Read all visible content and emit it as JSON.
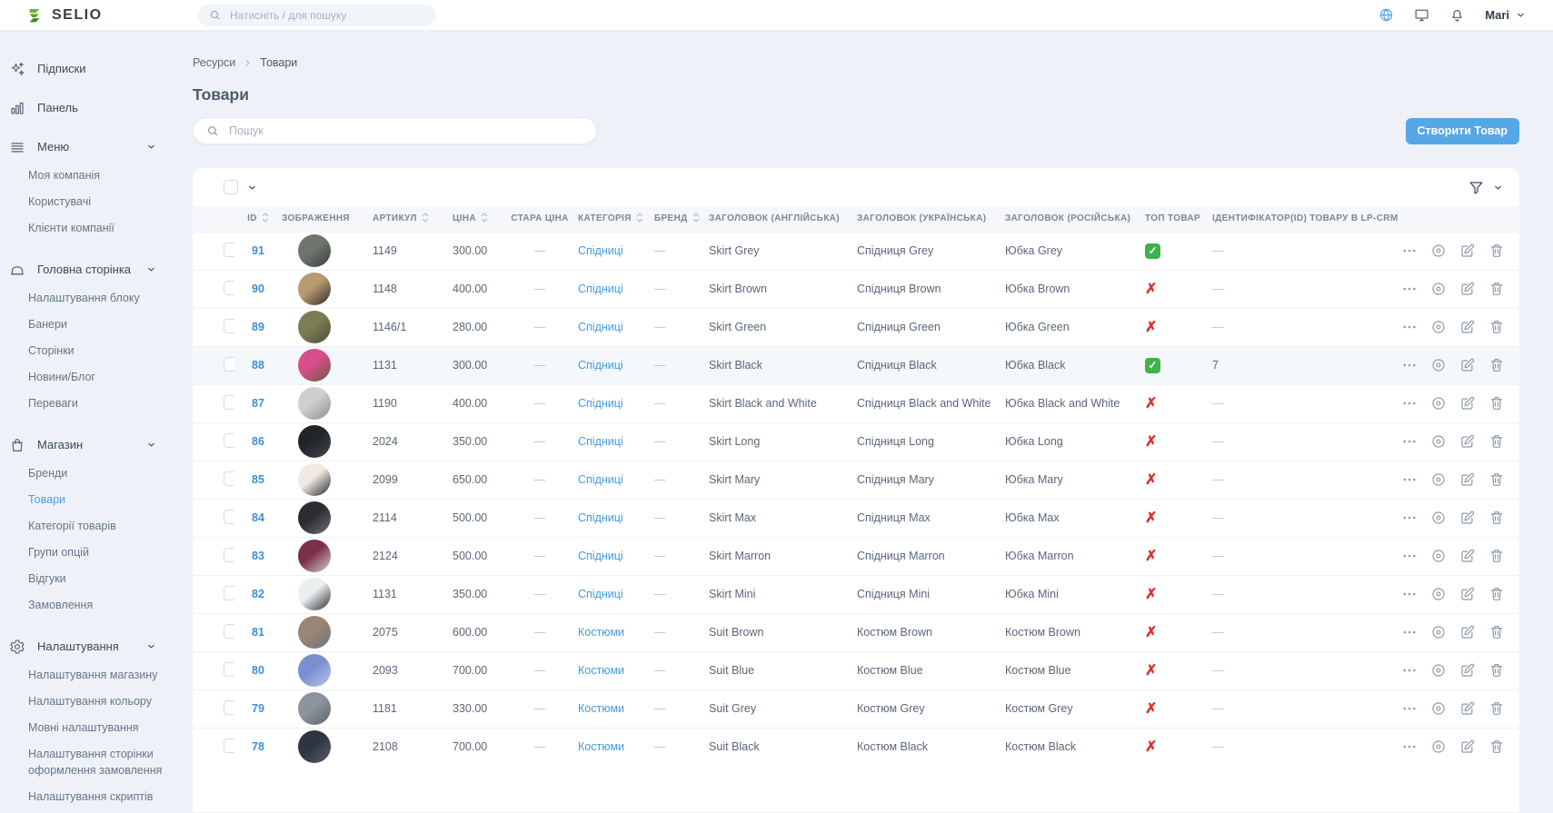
{
  "topbar": {
    "brand": "SELIO",
    "search_placeholder": "Натисніть / для пошуку",
    "icons": [
      "language-globe",
      "monitor",
      "notifications-bell"
    ],
    "user_name": "Mari"
  },
  "sidebar": {
    "sections": [
      {
        "label": "Підписки",
        "icon": "sparkles",
        "children": []
      },
      {
        "label": "Панель",
        "icon": "bar-chart",
        "children": []
      },
      {
        "label": "Меню",
        "icon": "menu",
        "expanded": true,
        "children": [
          "Моя компанія",
          "Користувачі",
          "Клієнти компанії"
        ]
      },
      {
        "label": "Головна сторінка",
        "icon": "home-box",
        "expanded": true,
        "children": [
          "Налаштування блоку",
          "Банери",
          "Сторінки",
          "Новини/Блог",
          "Переваги"
        ]
      },
      {
        "label": "Магазин",
        "icon": "shopping-bag",
        "expanded": true,
        "active_child": "Товари",
        "children": [
          "Бренди",
          "Товари",
          "Категорії товарів",
          "Групи опцій",
          "Відгуки",
          "Замовлення"
        ]
      },
      {
        "label": "Налаштування",
        "icon": "gear",
        "expanded": true,
        "children": [
          "Налаштування магазину",
          "Налаштування кольору",
          "Мовні налаштування",
          "Налаштування сторінки оформлення замовлення",
          "Налаштування скриптів"
        ]
      }
    ]
  },
  "breadcrumb": [
    "Ресурси",
    "Товари"
  ],
  "page": {
    "title": "Товари",
    "search_placeholder": "Пошук",
    "create_button": "Створити Товар"
  },
  "colors": {
    "primary_blue": "#55a7e5",
    "link_blue": "#3d8fd6",
    "success_green": "#3fb24e",
    "danger_red": "#e03030"
  },
  "table": {
    "columns": [
      {
        "label": "ID",
        "sortable": true
      },
      {
        "label": "ЗОБРАЖЕННЯ",
        "sortable": false
      },
      {
        "label": "АРТИКУЛ",
        "sortable": true
      },
      {
        "label": "ЦІНА",
        "sortable": true
      },
      {
        "label": "СТАРА ЦІНА",
        "sortable": false
      },
      {
        "label": "КАТЕГОРІЯ",
        "sortable": true
      },
      {
        "label": "БРЕНД",
        "sortable": true
      },
      {
        "label": "ЗАГОЛОВОК (АНГЛІЙСЬКА)",
        "sortable": false
      },
      {
        "label": "ЗАГОЛОВОК (УКРАЇНСЬКА)",
        "sortable": false
      },
      {
        "label": "ЗАГОЛОВОК (РОСІЙСЬКА)",
        "sortable": false
      },
      {
        "label": "ТОП ТОВАР",
        "sortable": false
      },
      {
        "label": "ІДЕНТИФІКАТОР(ID) ТОВАРУ В LP-CRM",
        "sortable": false
      }
    ],
    "rows": [
      {
        "id": "91",
        "article": "1149",
        "price": "300.00",
        "old_price": "—",
        "category": "Спідниці",
        "brand": "—",
        "title_en": "Skirt Grey",
        "title_uk": "Спідниця Grey",
        "title_ru": "Юбка Grey",
        "top_product": true,
        "lp_crm_id": "—",
        "image_colors": [
          "#70756c",
          "#3c4043"
        ]
      },
      {
        "id": "90",
        "article": "1148",
        "price": "400.00",
        "old_price": "—",
        "category": "Спідниці",
        "brand": "—",
        "title_en": "Skirt Brown",
        "title_uk": "Спідниця Brown",
        "title_ru": "Юбка Brown",
        "top_product": false,
        "lp_crm_id": "—",
        "image_colors": [
          "#b89a6f",
          "#2e2b28"
        ]
      },
      {
        "id": "89",
        "article": "1146/1",
        "price": "280.00",
        "old_price": "—",
        "category": "Спідниці",
        "brand": "—",
        "title_en": "Skirt Green",
        "title_uk": "Спідниця Green",
        "title_ru": "Юбка Green",
        "top_product": false,
        "lp_crm_id": "—",
        "image_colors": [
          "#7d7d55",
          "#4c4f3a"
        ]
      },
      {
        "id": "88",
        "article": "1131",
        "price": "300.00",
        "old_price": "—",
        "category": "Спідниці",
        "brand": "—",
        "title_en": "Skirt Black",
        "title_uk": "Спідниця Black",
        "title_ru": "Юбка Black",
        "top_product": true,
        "lp_crm_id": "7",
        "image_colors": [
          "#d64f8a",
          "#6e5a43"
        ],
        "highlighted": true
      },
      {
        "id": "87",
        "article": "1190",
        "price": "400.00",
        "old_price": "—",
        "category": "Спідниці",
        "brand": "—",
        "title_en": "Skirt Black and White",
        "title_uk": "Спідниця Black and White",
        "title_ru": "Юбка Black and White",
        "top_product": false,
        "lp_crm_id": "—",
        "image_colors": [
          "#cfcfcf",
          "#8e8e8e"
        ]
      },
      {
        "id": "86",
        "article": "2024",
        "price": "350.00",
        "old_price": "—",
        "category": "Спідниці",
        "brand": "—",
        "title_en": "Skirt Long",
        "title_uk": "Спідниця Long",
        "title_ru": "Юбка Long",
        "top_product": false,
        "lp_crm_id": "—",
        "image_colors": [
          "#22242a",
          "#43464f"
        ]
      },
      {
        "id": "85",
        "article": "2099",
        "price": "650.00",
        "old_price": "—",
        "category": "Спідниці",
        "brand": "—",
        "title_en": "Skirt Mary",
        "title_uk": "Спідниця Mary",
        "title_ru": "Юбка Mary",
        "top_product": false,
        "lp_crm_id": "—",
        "image_colors": [
          "#efe9e2",
          "#26282d"
        ]
      },
      {
        "id": "84",
        "article": "2114",
        "price": "500.00",
        "old_price": "—",
        "category": "Спідниці",
        "brand": "—",
        "title_en": "Skirt Max",
        "title_uk": "Спідниця Max",
        "title_ru": "Юбка Max",
        "top_product": false,
        "lp_crm_id": "—",
        "image_colors": [
          "#2a2c32",
          "#6e7076"
        ]
      },
      {
        "id": "83",
        "article": "2124",
        "price": "500.00",
        "old_price": "—",
        "category": "Спідниці",
        "brand": "—",
        "title_en": "Skirt Marron",
        "title_uk": "Спідниця Marron",
        "title_ru": "Юбка Marron",
        "top_product": false,
        "lp_crm_id": "—",
        "image_colors": [
          "#7c2f4a",
          "#cfd3d8"
        ]
      },
      {
        "id": "82",
        "article": "1131",
        "price": "350.00",
        "old_price": "—",
        "category": "Спідниці",
        "brand": "—",
        "title_en": "Skirt Mini",
        "title_uk": "Спідниця Mini",
        "title_ru": "Юбка Mini",
        "top_product": false,
        "lp_crm_id": "—",
        "image_colors": [
          "#eceff0",
          "#2b2d33"
        ]
      },
      {
        "id": "81",
        "article": "2075",
        "price": "600.00",
        "old_price": "—",
        "category": "Костюми",
        "brand": "—",
        "title_en": "Suit Brown",
        "title_uk": "Костюм Brown",
        "title_ru": "Костюм Brown",
        "top_product": false,
        "lp_crm_id": "—",
        "image_colors": [
          "#9a8674",
          "#6d757d"
        ]
      },
      {
        "id": "80",
        "article": "2093",
        "price": "700.00",
        "old_price": "—",
        "category": "Костюми",
        "brand": "—",
        "title_en": "Suit Blue",
        "title_uk": "Костюм Blue",
        "title_ru": "Костюм Blue",
        "top_product": false,
        "lp_crm_id": "—",
        "image_colors": [
          "#7a8fd0",
          "#b9c4e8"
        ]
      },
      {
        "id": "79",
        "article": "1181",
        "price": "330.00",
        "old_price": "—",
        "category": "Костюми",
        "brand": "—",
        "title_en": "Suit Grey",
        "title_uk": "Костюм Grey",
        "title_ru": "Костюм Grey",
        "top_product": false,
        "lp_crm_id": "—",
        "image_colors": [
          "#8b949c",
          "#5f676e"
        ]
      },
      {
        "id": "78",
        "article": "2108",
        "price": "700.00",
        "old_price": "—",
        "category": "Костюми",
        "brand": "—",
        "title_en": "Suit Black",
        "title_uk": "Костюм Black",
        "title_ru": "Костюм Black",
        "top_product": false,
        "lp_crm_id": "—",
        "image_colors": [
          "#2e3442",
          "#565d6b"
        ]
      }
    ]
  }
}
